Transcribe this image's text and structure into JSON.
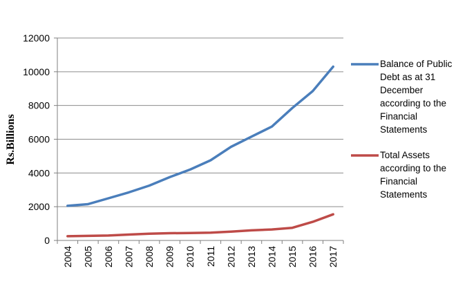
{
  "chart_data": {
    "type": "line",
    "title": "",
    "xlabel": "",
    "ylabel": "Rs.Billions",
    "x": [
      "2004",
      "2005",
      "2006",
      "2007",
      "2008",
      "2009",
      "2010",
      "2011",
      "2012",
      "2013",
      "2014",
      "2015",
      "2016",
      "2017"
    ],
    "yticks": [
      "0",
      "2000",
      "4000",
      "6000",
      "8000",
      "10000",
      "12000"
    ],
    "ylim": [
      0,
      12000
    ],
    "grid": "horizontal",
    "legend_position": "right",
    "series": [
      {
        "name": "Balance of Public Debt as at 31 December according to the Financial Statements",
        "legend_lines": [
          "Balance of Public",
          "Debt as at 31",
          "December",
          "according to the",
          "Financial",
          "Statements"
        ],
        "color": "#4a7ebb",
        "values": [
          2050,
          2150,
          2500,
          2850,
          3250,
          3750,
          4200,
          4750,
          5550,
          6150,
          6750,
          7850,
          8850,
          10300
        ]
      },
      {
        "name": "Total Assets according to the Financial Statements",
        "legend_lines": [
          "Total Assets",
          "according to the",
          "Financial",
          "Statements"
        ],
        "color": "#be4b48",
        "values": [
          250,
          270,
          290,
          350,
          400,
          430,
          440,
          460,
          520,
          600,
          650,
          750,
          1100,
          1550
        ]
      }
    ]
  }
}
